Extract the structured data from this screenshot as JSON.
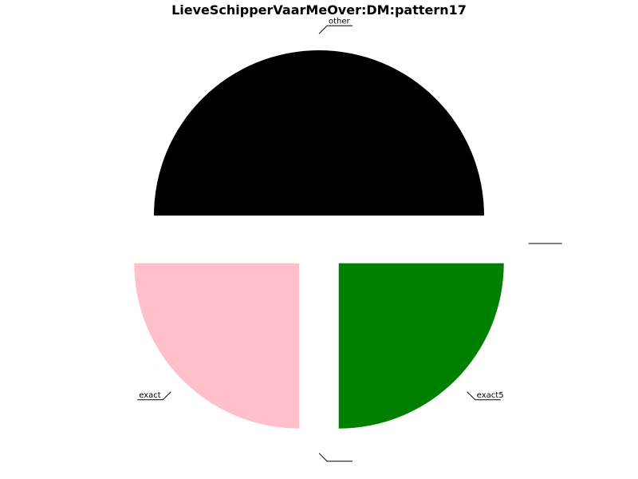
{
  "chart_data": {
    "type": "pie",
    "title": "LieveSchipperVaarMeOver:DM:pattern17",
    "slices": [
      {
        "label": "other",
        "value": 50,
        "color": "#000000"
      },
      {
        "label": "exact",
        "value": 25,
        "color": "#ffc0cb"
      },
      {
        "label": "",
        "value": 0,
        "color": "#ffffff"
      },
      {
        "label": "exact5",
        "value": 25,
        "color": "#008000"
      },
      {
        "label": "",
        "value": 0,
        "color": "#ffffff"
      }
    ],
    "legend": "none"
  }
}
